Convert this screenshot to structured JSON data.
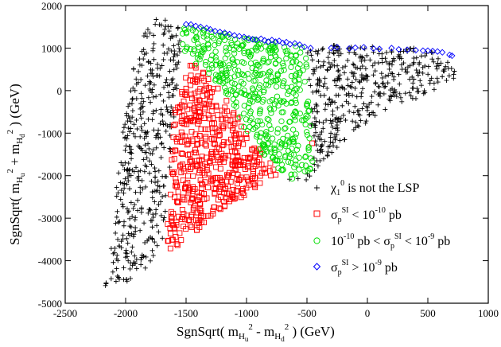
{
  "chart_data": {
    "type": "scatter",
    "xlim": [
      -2500,
      1000
    ],
    "ylim": [
      -5000,
      2000
    ],
    "x_ticks": [
      -2500,
      -2000,
      -1500,
      -1000,
      -500,
      0,
      500,
      1000
    ],
    "y_ticks": [
      -5000,
      -4000,
      -3000,
      -2000,
      -1000,
      0,
      1000,
      2000
    ],
    "x_tick_labels": [
      "-2500",
      "-2000",
      "-1500",
      "-1000",
      "-500",
      "0",
      "500",
      "1000"
    ],
    "y_tick_labels": [
      "-5000",
      "-4000",
      "-3000",
      "-2000",
      "-1000",
      "0",
      "1000",
      "2000"
    ],
    "xlabel": "SgnSqrt( m_Hu^2 - m_Hd^2 ) (GeV)",
    "ylabel": "SgnSqrt( m_Hu^2 + m_Hd^2 ) (GeV)",
    "grid": false,
    "legend_position": "bottom-right",
    "series": [
      {
        "name": "χ1^0 is not the LSP",
        "marker": "plus",
        "color": "#000000",
        "region": [
          [
            -2200,
            -4700
          ],
          [
            -2130,
            -4000
          ],
          [
            -2050,
            -1500
          ],
          [
            -1950,
            400
          ],
          [
            -1800,
            1750
          ],
          [
            -1550,
            1600
          ],
          [
            -1550,
            600
          ],
          [
            -1700,
            -3700
          ],
          [
            -1900,
            -4400
          ]
        ],
        "region2": [
          [
            -800,
            -2300
          ],
          [
            -500,
            -2100
          ],
          [
            -400,
            -1800
          ],
          [
            -200,
            -1200
          ],
          [
            100,
            -500
          ],
          [
            400,
            -200
          ],
          [
            750,
            300
          ],
          [
            700,
            800
          ],
          [
            400,
            1000
          ],
          [
            -300,
            1100
          ],
          [
            -500,
            1000
          ],
          [
            -460,
            -1800
          ]
        ]
      },
      {
        "name": "σp^SI < 10^-10 pb",
        "marker": "square",
        "color": "#ff0000",
        "region": [
          [
            -1680,
            -3850
          ],
          [
            -1640,
            -2800
          ],
          [
            -1600,
            -500
          ],
          [
            -1450,
            800
          ],
          [
            -1300,
            700
          ],
          [
            -1000,
            -300
          ],
          [
            -700,
            -900
          ],
          [
            -450,
            -1200
          ],
          [
            -460,
            -1650
          ],
          [
            -800,
            -2050
          ],
          [
            -1250,
            -2900
          ],
          [
            -1500,
            -3500
          ]
        ]
      },
      {
        "name": "10^-10 pb < σp^SI < 10^-9 pb",
        "marker": "circle",
        "color": "#00dd00",
        "region": [
          [
            -1550,
            1580
          ],
          [
            -1300,
            1400
          ],
          [
            -900,
            1200
          ],
          [
            -500,
            1000
          ],
          [
            -450,
            -1900
          ],
          [
            -620,
            -2080
          ],
          [
            -800,
            -1700
          ],
          [
            -1000,
            -1000
          ],
          [
            -1200,
            0
          ],
          [
            -1450,
            700
          ],
          [
            -1550,
            1000
          ]
        ]
      },
      {
        "name": "σp^SI > 10^-9 pb",
        "marker": "diamond",
        "color": "#0000ff",
        "points": [
          [
            -1500,
            1560
          ],
          [
            -1460,
            1555
          ],
          [
            -1420,
            1520
          ],
          [
            -1380,
            1500
          ],
          [
            -1330,
            1470
          ],
          [
            -1300,
            1440
          ],
          [
            -1260,
            1400
          ],
          [
            -1220,
            1380
          ],
          [
            -1180,
            1360
          ],
          [
            -1140,
            1330
          ],
          [
            -1100,
            1300
          ],
          [
            -1060,
            1280
          ],
          [
            -1020,
            1260
          ],
          [
            -980,
            1230
          ],
          [
            -950,
            1210
          ],
          [
            -920,
            1200
          ],
          [
            -880,
            1220
          ],
          [
            -850,
            1180
          ],
          [
            -820,
            1150
          ],
          [
            -790,
            1190
          ],
          [
            -760,
            1150
          ],
          [
            -730,
            1170
          ],
          [
            -700,
            1120
          ],
          [
            -670,
            1140
          ],
          [
            -640,
            1090
          ],
          [
            -600,
            1110
          ],
          [
            -560,
            1080
          ],
          [
            -520,
            1030
          ],
          [
            -470,
            1000
          ],
          [
            -300,
            1000
          ],
          [
            -250,
            1020
          ],
          [
            -150,
            990
          ],
          [
            -100,
            1010
          ],
          [
            -30,
            1020
          ],
          [
            50,
            990
          ],
          [
            100,
            980
          ],
          [
            200,
            1000
          ],
          [
            260,
            970
          ],
          [
            330,
            960
          ],
          [
            400,
            950
          ],
          [
            460,
            940
          ],
          [
            500,
            940
          ],
          [
            540,
            930
          ],
          [
            580,
            920
          ],
          [
            620,
            900
          ],
          [
            680,
            840
          ],
          [
            700,
            820
          ]
        ]
      }
    ]
  },
  "axes": {
    "x_label_main": "SgnSqrt( m",
    "x_label_rest": " ) (GeV)",
    "y_label_main": "SgnSqrt( m",
    "y_label_rest": " ) (GeV)"
  },
  "legend": [
    {
      "prefix": "χ",
      "rest": " is not the LSP"
    },
    {
      "prefix": "σ",
      "rest": " < 10",
      "tail": " pb"
    },
    {
      "prefix": "10",
      "rest": " pb < σ",
      "tail": " < 10",
      "tail2": " pb"
    },
    {
      "prefix": "σ",
      "rest": " > 10",
      "tail": " pb"
    }
  ]
}
